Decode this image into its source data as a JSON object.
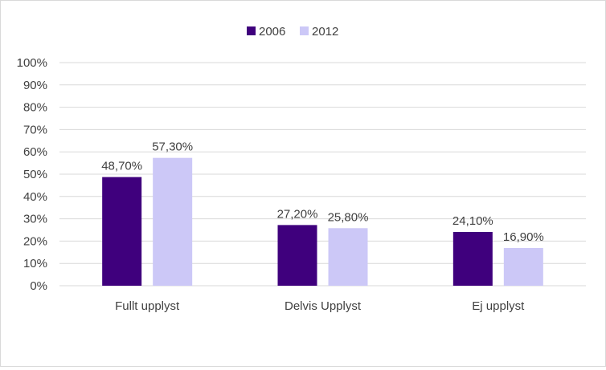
{
  "chart_data": {
    "type": "bar",
    "title": "",
    "xlabel": "",
    "ylabel": "",
    "categories": [
      "Fullt upplyst",
      "Delvis Upplyst",
      "Ej upplyst"
    ],
    "series": [
      {
        "name": "2006",
        "color": "#3f007d",
        "values": [
          48.7,
          27.2,
          24.1
        ],
        "labels": [
          "48,70%",
          "27,20%",
          "24,10%"
        ]
      },
      {
        "name": "2012",
        "color": "#ccc8f7",
        "values": [
          57.3,
          25.8,
          16.9
        ],
        "labels": [
          "57,30%",
          "25,80%",
          "16,90%"
        ]
      }
    ],
    "yticks": [
      "0%",
      "10%",
      "20%",
      "30%",
      "40%",
      "50%",
      "60%",
      "70%",
      "80%",
      "90%",
      "100%"
    ],
    "ylim": [
      0,
      100
    ],
    "grid": true,
    "legend": "top-center",
    "gridline_color": "#d9d9d9"
  }
}
